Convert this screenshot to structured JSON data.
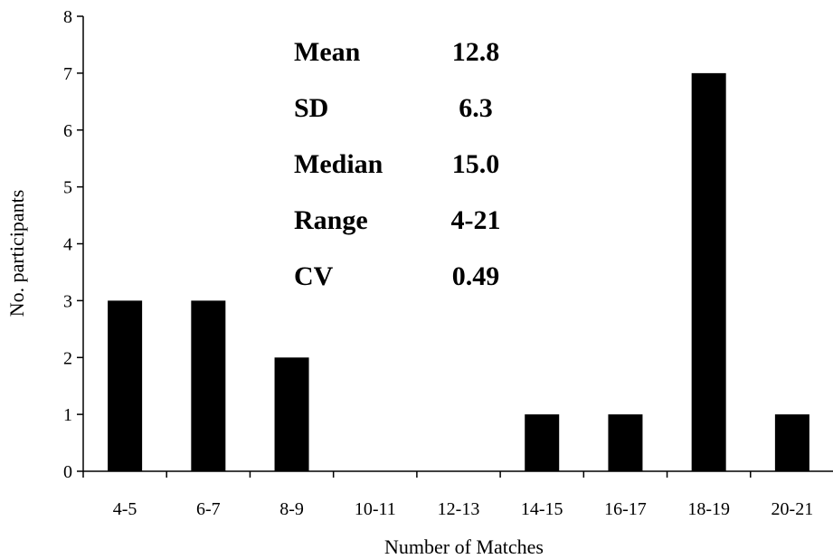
{
  "chart_data": {
    "type": "bar",
    "categories": [
      "4-5",
      "6-7",
      "8-9",
      "10-11",
      "12-13",
      "14-15",
      "16-17",
      "18-19",
      "20-21"
    ],
    "values": [
      3,
      3,
      2,
      0,
      0,
      1,
      1,
      7,
      1
    ],
    "title": "",
    "xlabel": "Number of Matches",
    "ylabel": "No. participants",
    "ylim": [
      0,
      8
    ],
    "yticks": [
      0,
      1,
      2,
      3,
      4,
      5,
      6,
      7,
      8
    ],
    "grid": false,
    "legend": "none",
    "bar_color": "#000000",
    "annotation": {
      "placement": "top-left inside plot",
      "rows": [
        {
          "label": "Mean",
          "value": "12.8"
        },
        {
          "label": "SD",
          "value": "6.3"
        },
        {
          "label": "Median",
          "value": "15.0"
        },
        {
          "label": "Range",
          "value": "4-21"
        },
        {
          "label": "CV",
          "value": "0.49"
        }
      ]
    }
  }
}
